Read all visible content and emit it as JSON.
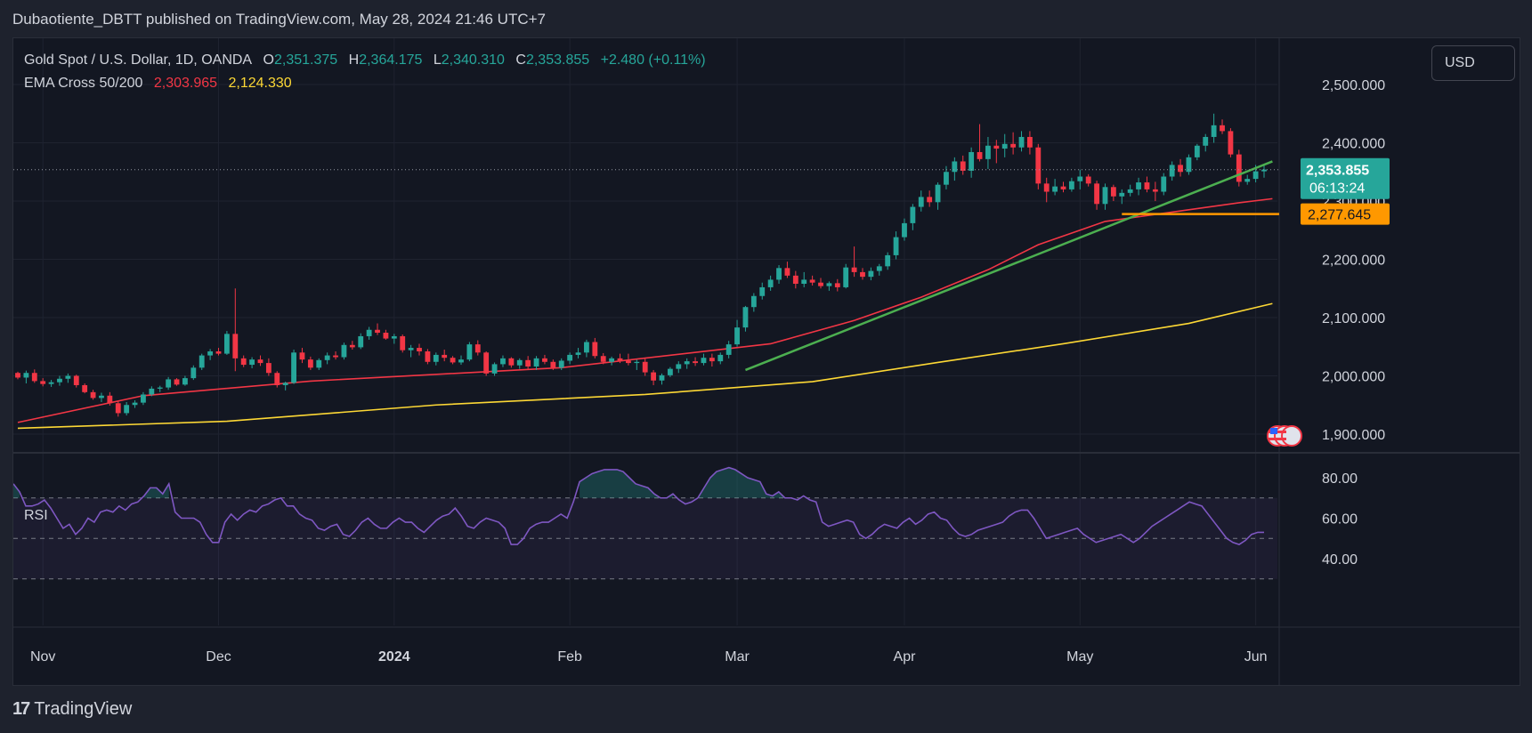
{
  "header": {
    "publisher": "Dubaotiente_DBTT published on TradingView.com, May 28, 2024 21:46 UTC+7"
  },
  "legend": {
    "symbol": "Gold Spot / U.S. Dollar, 1D, OANDA",
    "open_label": "O",
    "open": "2,351.375",
    "high_label": "H",
    "high": "2,364.175",
    "low_label": "L",
    "low": "2,340.310",
    "close_label": "C",
    "close": "2,353.855",
    "change": "+2.480 (+0.11%)",
    "ema_label": "EMA Cross 50/200",
    "ema50": "2,303.965",
    "ema200": "2,124.330"
  },
  "currency_button": "USD",
  "price_tag": {
    "price": "2,353.855",
    "countdown": "06:13:24"
  },
  "level_tag": "2,277.645",
  "rsi_label": "RSI",
  "footer": {
    "logo": "17",
    "brand": "TradingView"
  },
  "colors": {
    "bull": "#26a69a",
    "bear": "#f23645",
    "ema50": "#f23645",
    "ema200": "#fdd835",
    "trendline": "#4caf50",
    "level": "#ff9800",
    "rsi": "#7e57c2"
  },
  "chart_data": {
    "type": "candlestick",
    "price_axis": {
      "ticks": [
        1900,
        2000,
        2100,
        2200,
        2300,
        2400,
        2500
      ],
      "tick_labels": [
        "1,900.000",
        "2,000.000",
        "2,100.000",
        "2,200.000",
        "2,300.000",
        "2,400.000",
        "2,500.000"
      ]
    },
    "time_axis": {
      "labels": [
        "Nov",
        "Dec",
        "2024",
        "Feb",
        "Mar",
        "Apr",
        "May",
        "Jun"
      ],
      "label_index": [
        3,
        24,
        45,
        66,
        86,
        106,
        127,
        148
      ]
    },
    "ohlc": [
      [
        2005,
        2007,
        1994,
        1997
      ],
      [
        1997,
        2009,
        1987,
        2005
      ],
      [
        2005,
        2011,
        1988,
        1991
      ],
      [
        1991,
        1996,
        1982,
        1986
      ],
      [
        1986,
        1993,
        1981,
        1989
      ],
      [
        1989,
        2000,
        1983,
        1995
      ],
      [
        1995,
        2004,
        1988,
        2000
      ],
      [
        2000,
        2002,
        1980,
        1984
      ],
      [
        1984,
        1987,
        1970,
        1972
      ],
      [
        1972,
        1976,
        1959,
        1962
      ],
      [
        1962,
        1971,
        1955,
        1966
      ],
      [
        1966,
        1972,
        1949,
        1953
      ],
      [
        1953,
        1956,
        1930,
        1936
      ],
      [
        1936,
        1955,
        1932,
        1950
      ],
      [
        1950,
        1958,
        1945,
        1954
      ],
      [
        1954,
        1972,
        1950,
        1968
      ],
      [
        1968,
        1982,
        1965,
        1978
      ],
      [
        1978,
        1983,
        1972,
        1980
      ],
      [
        1980,
        1998,
        1976,
        1994
      ],
      [
        1994,
        1996,
        1983,
        1985
      ],
      [
        1985,
        2000,
        1983,
        1996
      ],
      [
        1996,
        2018,
        1993,
        2014
      ],
      [
        2014,
        2038,
        2010,
        2035
      ],
      [
        2035,
        2046,
        2027,
        2042
      ],
      [
        2042,
        2048,
        2035,
        2038
      ],
      [
        2038,
        2077,
        2036,
        2072
      ],
      [
        2072,
        2150,
        2008,
        2030
      ],
      [
        2030,
        2035,
        2015,
        2019
      ],
      [
        2019,
        2032,
        2013,
        2028
      ],
      [
        2028,
        2035,
        2017,
        2022
      ],
      [
        2022,
        2030,
        2000,
        2005
      ],
      [
        2005,
        2008,
        1980,
        1984
      ],
      [
        1984,
        1990,
        1975,
        1988
      ],
      [
        1988,
        2045,
        1986,
        2040
      ],
      [
        2040,
        2048,
        2022,
        2028
      ],
      [
        2028,
        2033,
        2010,
        2014
      ],
      [
        2014,
        2030,
        2010,
        2027
      ],
      [
        2027,
        2040,
        2020,
        2035
      ],
      [
        2035,
        2042,
        2028,
        2032
      ],
      [
        2032,
        2057,
        2028,
        2053
      ],
      [
        2053,
        2060,
        2045,
        2049
      ],
      [
        2049,
        2073,
        2046,
        2068
      ],
      [
        2068,
        2084,
        2062,
        2079
      ],
      [
        2079,
        2090,
        2070,
        2074
      ],
      [
        2074,
        2079,
        2062,
        2064
      ],
      [
        2064,
        2072,
        2055,
        2068
      ],
      [
        2068,
        2071,
        2040,
        2044
      ],
      [
        2044,
        2053,
        2032,
        2048
      ],
      [
        2048,
        2055,
        2035,
        2042
      ],
      [
        2042,
        2046,
        2020,
        2024
      ],
      [
        2024,
        2040,
        2018,
        2036
      ],
      [
        2036,
        2045,
        2025,
        2031
      ],
      [
        2031,
        2034,
        2020,
        2023
      ],
      [
        2023,
        2035,
        2019,
        2028
      ],
      [
        2028,
        2058,
        2025,
        2054
      ],
      [
        2054,
        2061,
        2035,
        2040
      ],
      [
        2040,
        2042,
        2000,
        2004
      ],
      [
        2004,
        2023,
        2000,
        2020
      ],
      [
        2020,
        2035,
        2015,
        2030
      ],
      [
        2030,
        2032,
        2014,
        2018
      ],
      [
        2018,
        2030,
        2012,
        2027
      ],
      [
        2027,
        2034,
        2012,
        2016
      ],
      [
        2016,
        2034,
        2010,
        2030
      ],
      [
        2030,
        2036,
        2020,
        2024
      ],
      [
        2024,
        2028,
        2010,
        2014
      ],
      [
        2014,
        2030,
        2010,
        2026
      ],
      [
        2026,
        2040,
        2020,
        2036
      ],
      [
        2036,
        2048,
        2030,
        2040
      ],
      [
        2040,
        2062,
        2032,
        2058
      ],
      [
        2058,
        2065,
        2030,
        2034
      ],
      [
        2034,
        2039,
        2020,
        2024
      ],
      [
        2024,
        2033,
        2018,
        2030
      ],
      [
        2030,
        2038,
        2022,
        2026
      ],
      [
        2026,
        2038,
        2018,
        2022
      ],
      [
        2022,
        2028,
        2010,
        2024
      ],
      [
        2024,
        2030,
        2000,
        2006
      ],
      [
        2006,
        2010,
        1984,
        1992
      ],
      [
        1992,
        2004,
        1985,
        2001
      ],
      [
        2001,
        2015,
        1998,
        2012
      ],
      [
        2012,
        2025,
        2005,
        2020
      ],
      [
        2020,
        2030,
        2012,
        2025
      ],
      [
        2025,
        2032,
        2017,
        2022
      ],
      [
        2022,
        2038,
        2018,
        2031
      ],
      [
        2031,
        2038,
        2016,
        2025
      ],
      [
        2025,
        2040,
        2020,
        2036
      ],
      [
        2036,
        2060,
        2030,
        2054
      ],
      [
        2054,
        2096,
        2050,
        2083
      ],
      [
        2083,
        2120,
        2076,
        2118
      ],
      [
        2118,
        2142,
        2110,
        2137
      ],
      [
        2137,
        2160,
        2131,
        2152
      ],
      [
        2152,
        2172,
        2146,
        2165
      ],
      [
        2165,
        2190,
        2158,
        2185
      ],
      [
        2185,
        2196,
        2168,
        2172
      ],
      [
        2172,
        2180,
        2150,
        2158
      ],
      [
        2158,
        2178,
        2152,
        2165
      ],
      [
        2165,
        2172,
        2155,
        2160
      ],
      [
        2160,
        2168,
        2150,
        2154
      ],
      [
        2154,
        2162,
        2146,
        2159
      ],
      [
        2159,
        2166,
        2145,
        2152
      ],
      [
        2152,
        2192,
        2150,
        2186
      ],
      [
        2186,
        2222,
        2170,
        2178
      ],
      [
        2178,
        2185,
        2165,
        2170
      ],
      [
        2170,
        2186,
        2164,
        2180
      ],
      [
        2180,
        2192,
        2172,
        2188
      ],
      [
        2188,
        2212,
        2182,
        2207
      ],
      [
        2207,
        2248,
        2200,
        2238
      ],
      [
        2238,
        2270,
        2232,
        2262
      ],
      [
        2262,
        2295,
        2250,
        2290
      ],
      [
        2290,
        2318,
        2282,
        2307
      ],
      [
        2307,
        2318,
        2290,
        2298
      ],
      [
        2298,
        2332,
        2285,
        2328
      ],
      [
        2328,
        2360,
        2320,
        2350
      ],
      [
        2350,
        2375,
        2335,
        2368
      ],
      [
        2368,
        2378,
        2345,
        2352
      ],
      [
        2352,
        2392,
        2340,
        2384
      ],
      [
        2384,
        2432,
        2368,
        2372
      ],
      [
        2372,
        2410,
        2355,
        2395
      ],
      [
        2395,
        2405,
        2365,
        2390
      ],
      [
        2390,
        2415,
        2375,
        2398
      ],
      [
        2398,
        2418,
        2380,
        2392
      ],
      [
        2392,
        2420,
        2385,
        2410
      ],
      [
        2410,
        2420,
        2380,
        2392
      ],
      [
        2392,
        2398,
        2320,
        2330
      ],
      [
        2330,
        2340,
        2298,
        2316
      ],
      [
        2316,
        2338,
        2310,
        2325
      ],
      [
        2325,
        2333,
        2315,
        2320
      ],
      [
        2320,
        2340,
        2316,
        2334
      ],
      [
        2334,
        2354,
        2320,
        2342
      ],
      [
        2342,
        2346,
        2325,
        2330
      ],
      [
        2330,
        2335,
        2285,
        2295
      ],
      [
        2295,
        2330,
        2285,
        2324
      ],
      [
        2324,
        2328,
        2300,
        2308
      ],
      [
        2308,
        2320,
        2295,
        2314
      ],
      [
        2314,
        2328,
        2308,
        2320
      ],
      [
        2320,
        2340,
        2310,
        2332
      ],
      [
        2332,
        2342,
        2315,
        2320
      ],
      [
        2320,
        2333,
        2300,
        2316
      ],
      [
        2316,
        2348,
        2310,
        2342
      ],
      [
        2342,
        2368,
        2335,
        2362
      ],
      [
        2362,
        2372,
        2342,
        2350
      ],
      [
        2350,
        2380,
        2345,
        2375
      ],
      [
        2375,
        2398,
        2370,
        2395
      ],
      [
        2395,
        2415,
        2385,
        2410
      ],
      [
        2410,
        2450,
        2400,
        2430
      ],
      [
        2430,
        2440,
        2415,
        2420
      ],
      [
        2420,
        2425,
        2375,
        2380
      ],
      [
        2380,
        2388,
        2325,
        2333
      ],
      [
        2333,
        2345,
        2328,
        2338
      ],
      [
        2338,
        2362,
        2332,
        2351
      ],
      [
        2351,
        2364,
        2340,
        2354
      ]
    ],
    "ema50": [
      1920,
      1966,
      1991,
      2014,
      2055,
      2095,
      2135,
      2182,
      2225,
      2265,
      2285,
      2297,
      2304
    ],
    "ema50_index": [
      0,
      15,
      35,
      65,
      90,
      100,
      108,
      116,
      122,
      130,
      140,
      146,
      150
    ],
    "ema200": [
      1910,
      1922,
      1950,
      1968,
      1990,
      2023,
      2055,
      2090,
      2124
    ],
    "ema200_index": [
      0,
      25,
      50,
      75,
      95,
      110,
      125,
      140,
      150
    ],
    "trendline": {
      "from": {
        "index": 87,
        "value": 2010
      },
      "to": {
        "index": 150,
        "value": 2368
      }
    },
    "support_level": {
      "from_index": 132,
      "value": 2277.645
    },
    "last_price": 2353.855,
    "rsi": {
      "ticks": [
        40,
        60,
        80
      ],
      "tick_labels": [
        "40.00",
        "60.00",
        "80.00"
      ],
      "upper_band": 70,
      "mid": 50,
      "lower_band": 30,
      "values": [
        77,
        73,
        66,
        66,
        67,
        69,
        65,
        60,
        55,
        57,
        52,
        55,
        60,
        58,
        63,
        64,
        63,
        66,
        64,
        67,
        68,
        71,
        75,
        75,
        72,
        77,
        63,
        60,
        60,
        60,
        58,
        52,
        48,
        48,
        58,
        62,
        59,
        62,
        64,
        63,
        66,
        67,
        69,
        70,
        66,
        66,
        62,
        60,
        59,
        55,
        54,
        56,
        57,
        52,
        51,
        54,
        58,
        60,
        57,
        55,
        55,
        58,
        60,
        58,
        58,
        55,
        53,
        56,
        59,
        61,
        62,
        65,
        61,
        56,
        55,
        58,
        60,
        59,
        58,
        55,
        47,
        47,
        50,
        55,
        57,
        58,
        58,
        60,
        62,
        60,
        68,
        78,
        80,
        82,
        83,
        84,
        84,
        84,
        83,
        80,
        77,
        76,
        75,
        72,
        70,
        70,
        72,
        69,
        67,
        68,
        70,
        75,
        80,
        83,
        84,
        85,
        84,
        82,
        80,
        79,
        78,
        72,
        71,
        73,
        70,
        70,
        69,
        71,
        69,
        68,
        58,
        56,
        57,
        58,
        59,
        58,
        52,
        50,
        52,
        55,
        57,
        56,
        55,
        58,
        60,
        57,
        59,
        62,
        63,
        60,
        59,
        55,
        52,
        51,
        52,
        54,
        55,
        56,
        57,
        58,
        61,
        63,
        64,
        64,
        60,
        55,
        50,
        51,
        52,
        53,
        54,
        55,
        52,
        50,
        48,
        49,
        50,
        51,
        52,
        50,
        48,
        50,
        53,
        56,
        58,
        60,
        62,
        64,
        66,
        68,
        67,
        66,
        62,
        58,
        54,
        50,
        48,
        47,
        49,
        52,
        53,
        53
      ]
    }
  }
}
